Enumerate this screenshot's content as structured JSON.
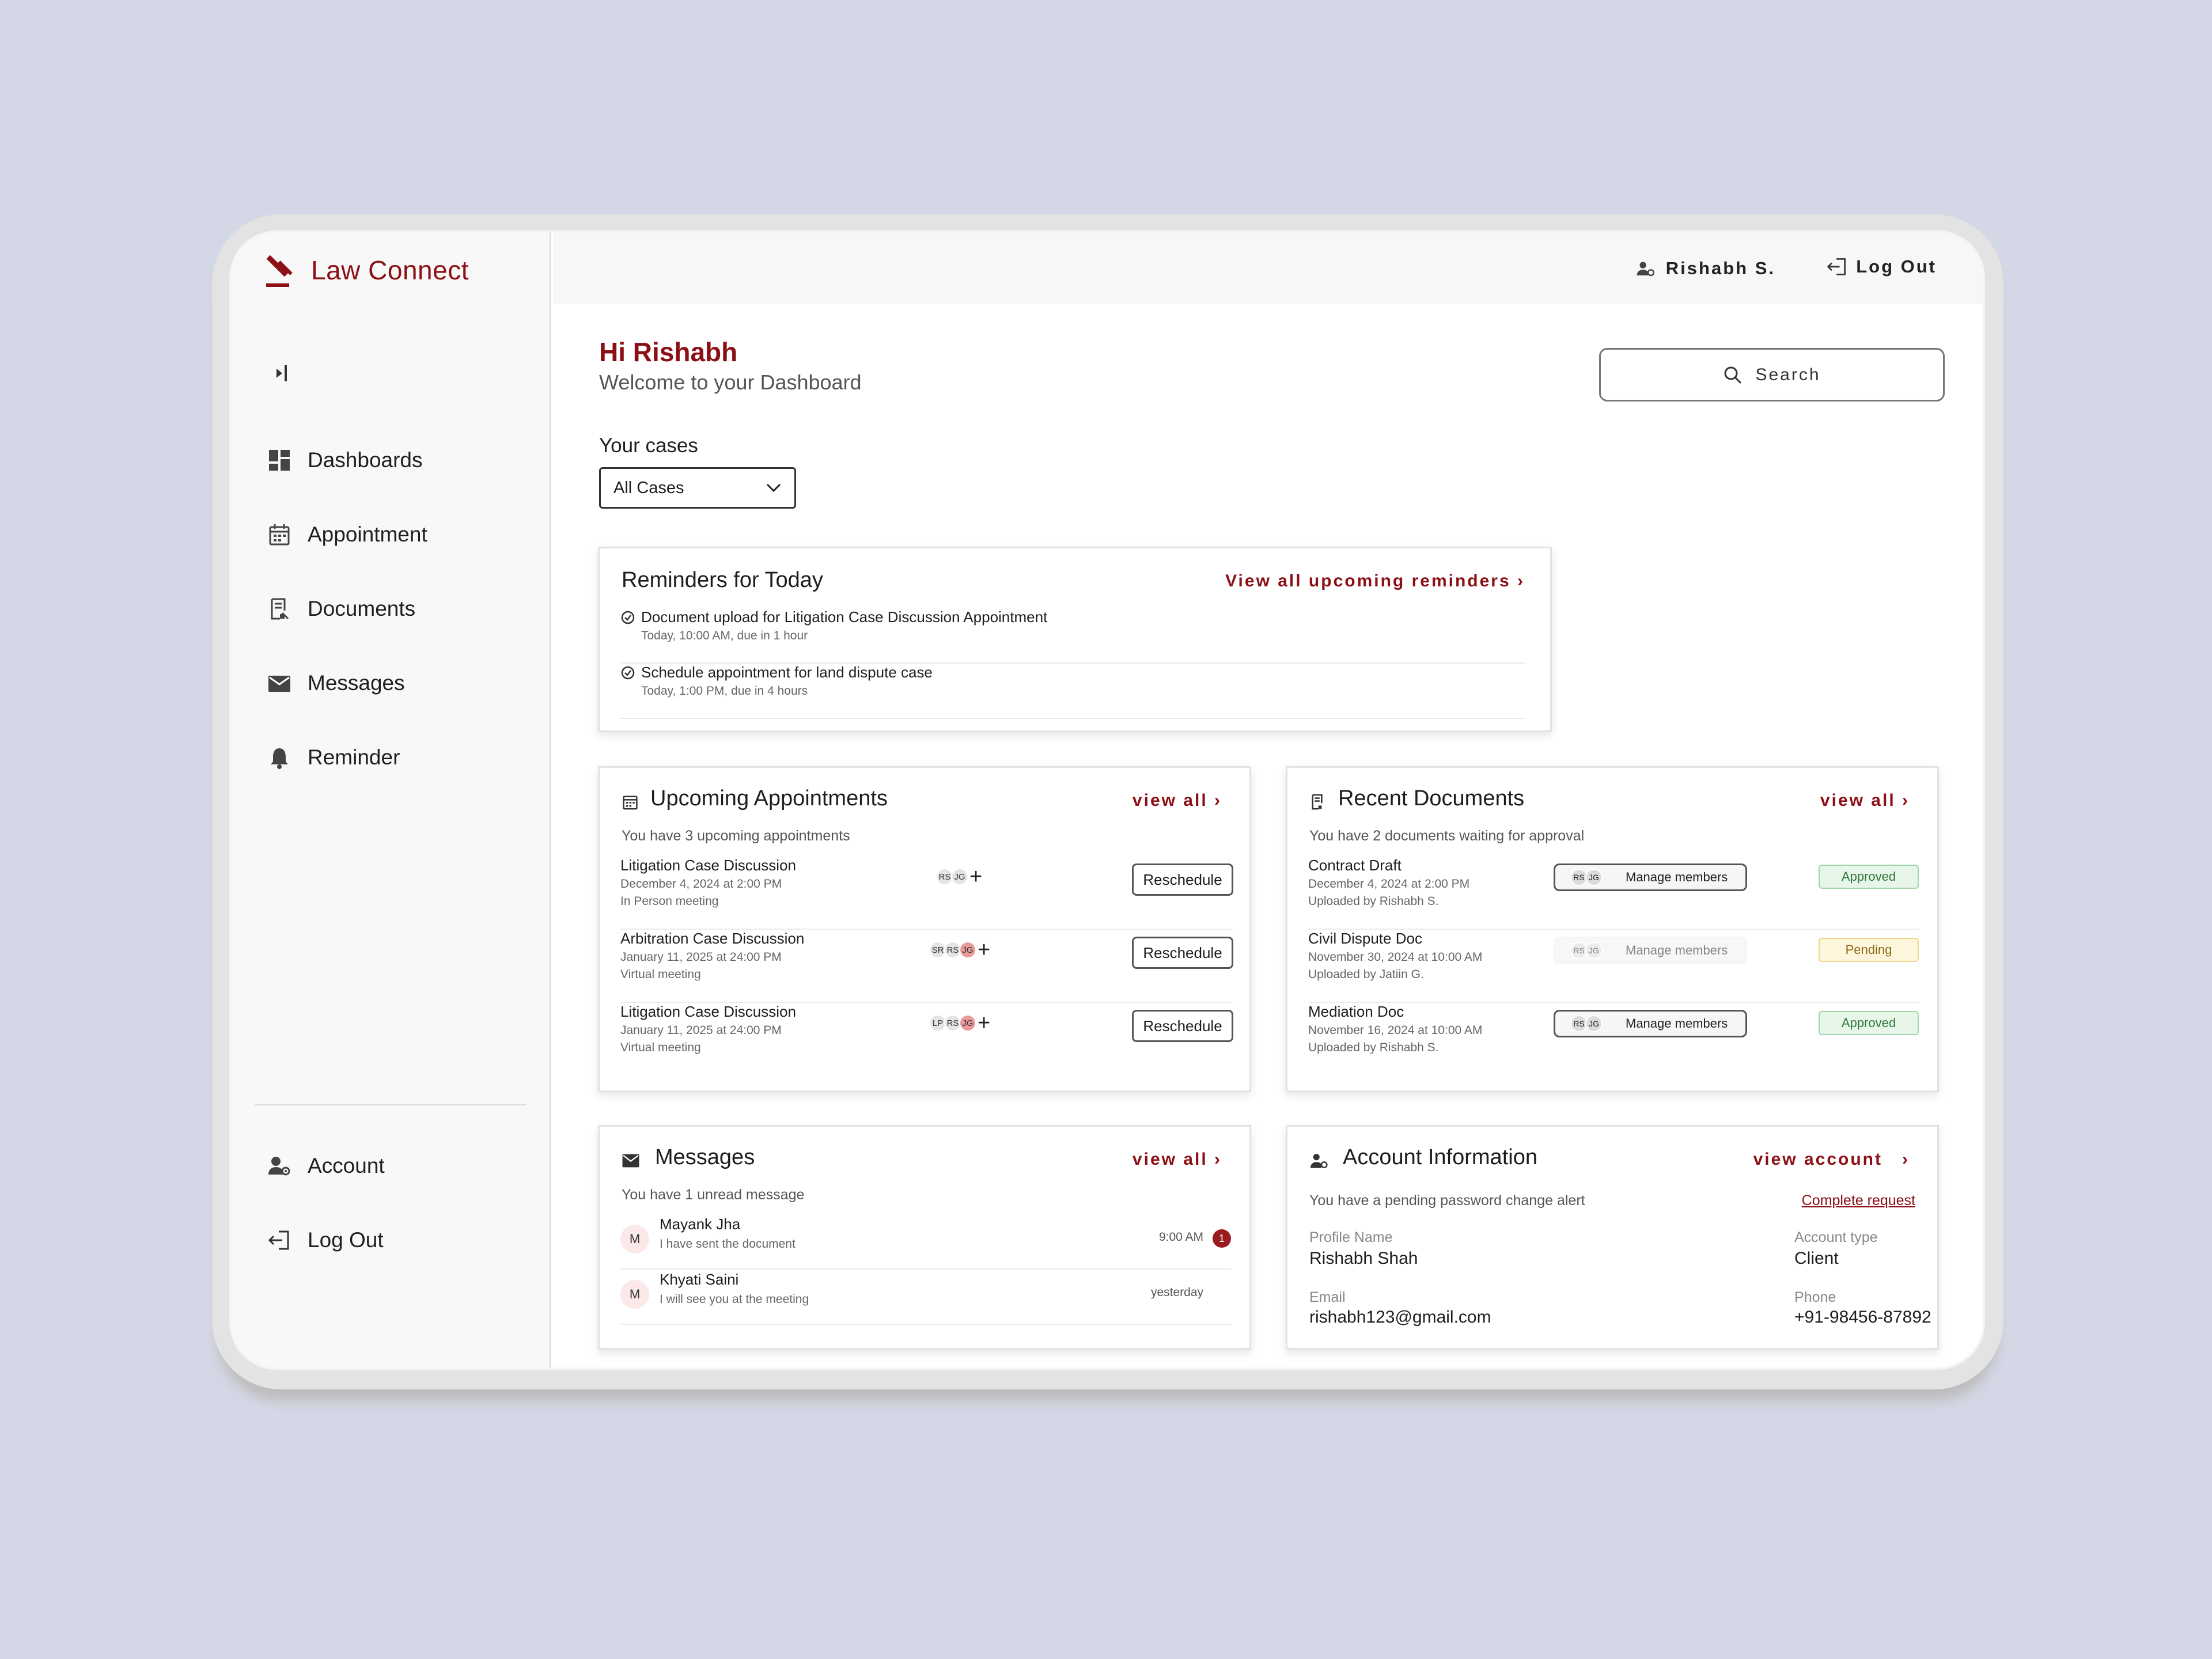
{
  "app": {
    "name": "Law Connect",
    "brand_color": "#8b0f14"
  },
  "sidebar": {
    "items": [
      {
        "label": "Dashboards",
        "icon": "dashboard-icon"
      },
      {
        "label": "Appointment",
        "icon": "calendar-icon"
      },
      {
        "label": "Documents",
        "icon": "document-icon"
      },
      {
        "label": "Messages",
        "icon": "mail-icon"
      },
      {
        "label": "Reminder",
        "icon": "bell-icon"
      }
    ],
    "bottom": [
      {
        "label": "Account",
        "icon": "account-icon"
      },
      {
        "label": "Log Out",
        "icon": "logout-icon"
      }
    ]
  },
  "topbar": {
    "user_name": "Rishabh S.",
    "logout_label": "Log Out"
  },
  "header": {
    "greeting": "Hi Rishabh",
    "subtitle": "Welcome to your Dashboard",
    "search_label": "Search"
  },
  "cases": {
    "label": "Your cases",
    "selected": "All Cases"
  },
  "reminders": {
    "title": "Reminders for Today",
    "link": "View all upcoming reminders",
    "items": [
      {
        "title": "Document upload for Litigation Case Discussion Appointment",
        "sub": "Today, 10:00 AM, due in 1 hour"
      },
      {
        "title": "Schedule appointment for land dispute case",
        "sub": "Today, 1:00 PM, due in 4 hours"
      }
    ]
  },
  "appointments": {
    "title": "Upcoming Appointments",
    "link": "view all",
    "summary": "You have 3 upcoming appointments",
    "button_label": "Reschedule",
    "items": [
      {
        "title": "Litigation Case Discussion",
        "date": "December 4, 2024 at 2:00 PM",
        "mode": "In Person meeting",
        "members": [
          "RS",
          "JG"
        ]
      },
      {
        "title": "Arbitration Case Discussion",
        "date": "January 11, 2025 at 24:00 PM",
        "mode": "Virtual meeting",
        "members": [
          "SR",
          "RS",
          "JG"
        ]
      },
      {
        "title": "Litigation Case Discussion",
        "date": "January 11, 2025 at 24:00 PM",
        "mode": "Virtual meeting",
        "members": [
          "LP",
          "RS",
          "JG"
        ]
      }
    ]
  },
  "documents": {
    "title": "Recent Documents",
    "link": "view all",
    "summary": "You have 2 documents waiting for approval",
    "manage_label": "Manage members",
    "items": [
      {
        "title": "Contract Draft",
        "date": "December 4, 2024 at 2:00 PM",
        "uploader": "Uploaded by Rishabh S.",
        "members": [
          "RS",
          "JG"
        ],
        "status": "Approved"
      },
      {
        "title": "Civil Dispute Doc",
        "date": "November 30, 2024 at 10:00 AM",
        "uploader": "Uploaded by Jatiin G.",
        "members": [
          "RS",
          "JG"
        ],
        "status": "Pending"
      },
      {
        "title": "Mediation Doc",
        "date": "November 16, 2024 at 10:00 AM",
        "uploader": "Uploaded by Rishabh S.",
        "members": [
          "RS",
          "JG"
        ],
        "status": "Approved"
      }
    ]
  },
  "messages": {
    "title": "Messages",
    "link": "view all",
    "summary": "You have 1 unread message",
    "items": [
      {
        "initial": "M",
        "name": "Mayank Jha",
        "preview": "I have sent the document",
        "time": "9:00 AM",
        "unread": "1"
      },
      {
        "initial": "M",
        "name": "Khyati Saini",
        "preview": "I will see you at the meeting",
        "time": "yesterday"
      }
    ]
  },
  "account": {
    "title": "Account Information",
    "link": "view account",
    "alert": "You have a pending password change alert",
    "alert_link": "Complete request",
    "profile_label": "Profile Name",
    "profile_value": "Rishabh Shah",
    "type_label": "Account type",
    "type_value": "Client",
    "email_label": "Email",
    "email_value": "rishabh123@gmail.com",
    "phone_label": "Phone",
    "phone_value": "+91-98456-87892"
  }
}
